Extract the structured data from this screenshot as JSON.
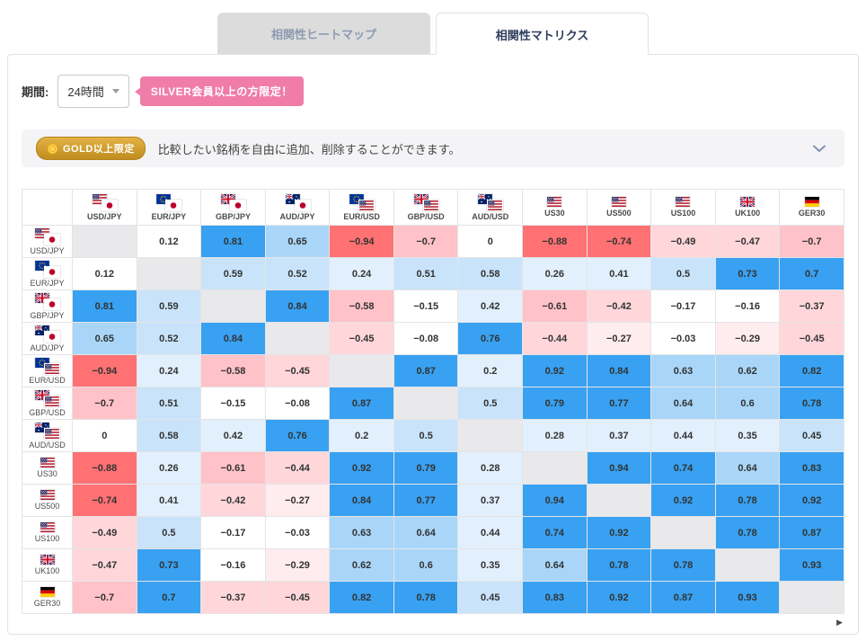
{
  "tabs": {
    "heatmap": "相関性ヒートマップ",
    "matrix": "相関性マトリクス"
  },
  "controls": {
    "period_label": "期間:",
    "period_value": "24時間",
    "silver_badge": "SILVER会員以上の方限定！"
  },
  "notice": {
    "badge": "GOLD以上限定",
    "text": "比較したい銘柄を自由に追加、削除することができます。"
  },
  "matrix": {
    "symbols": [
      {
        "name": "USD/JPY",
        "flags": [
          "us",
          "jp"
        ]
      },
      {
        "name": "EUR/JPY",
        "flags": [
          "eu",
          "jp"
        ]
      },
      {
        "name": "GBP/JPY",
        "flags": [
          "gb",
          "jp"
        ]
      },
      {
        "name": "AUD/JPY",
        "flags": [
          "au",
          "jp"
        ]
      },
      {
        "name": "EUR/USD",
        "flags": [
          "eu",
          "us"
        ]
      },
      {
        "name": "GBP/USD",
        "flags": [
          "gb",
          "us"
        ]
      },
      {
        "name": "AUD/USD",
        "flags": [
          "au",
          "us"
        ]
      },
      {
        "name": "US30",
        "flags": [
          "us"
        ]
      },
      {
        "name": "US500",
        "flags": [
          "us"
        ]
      },
      {
        "name": "US100",
        "flags": [
          "us"
        ]
      },
      {
        "name": "UK100",
        "flags": [
          "gb"
        ]
      },
      {
        "name": "GER30",
        "flags": [
          "de"
        ]
      }
    ],
    "values": [
      [
        null,
        0.12,
        0.81,
        0.65,
        -0.94,
        -0.7,
        0,
        -0.88,
        -0.74,
        -0.49,
        -0.47,
        -0.7
      ],
      [
        0.12,
        null,
        0.59,
        0.52,
        0.24,
        0.51,
        0.58,
        0.26,
        0.41,
        0.5,
        0.73,
        0.7
      ],
      [
        0.81,
        0.59,
        null,
        0.84,
        -0.58,
        -0.15,
        0.42,
        -0.61,
        -0.42,
        -0.17,
        -0.16,
        -0.37
      ],
      [
        0.65,
        0.52,
        0.84,
        null,
        -0.45,
        -0.08,
        0.76,
        -0.44,
        -0.27,
        -0.03,
        -0.29,
        -0.45
      ],
      [
        -0.94,
        0.24,
        -0.58,
        -0.45,
        null,
        0.87,
        0.2,
        0.92,
        0.84,
        0.63,
        0.62,
        0.82
      ],
      [
        -0.7,
        0.51,
        -0.15,
        -0.08,
        0.87,
        null,
        0.5,
        0.79,
        0.77,
        0.64,
        0.6,
        0.78
      ],
      [
        0,
        0.58,
        0.42,
        0.76,
        0.2,
        0.5,
        null,
        0.28,
        0.37,
        0.44,
        0.35,
        0.45
      ],
      [
        -0.88,
        0.26,
        -0.61,
        -0.44,
        0.92,
        0.79,
        0.28,
        null,
        0.94,
        0.74,
        0.64,
        0.83
      ],
      [
        -0.74,
        0.41,
        -0.42,
        -0.27,
        0.84,
        0.77,
        0.37,
        0.94,
        null,
        0.92,
        0.78,
        0.92
      ],
      [
        -0.49,
        0.5,
        -0.17,
        -0.03,
        0.63,
        0.64,
        0.44,
        0.74,
        0.92,
        null,
        0.78,
        0.87
      ],
      [
        -0.47,
        0.73,
        -0.16,
        -0.29,
        0.62,
        0.6,
        0.35,
        0.64,
        0.78,
        0.78,
        null,
        0.93
      ],
      [
        -0.7,
        0.7,
        -0.37,
        -0.45,
        0.82,
        0.78,
        0.45,
        0.83,
        0.92,
        0.87,
        0.93,
        null
      ]
    ]
  },
  "colors": {
    "positive_strong": "#38a1f2",
    "positive_medium": "#a9d6f8",
    "positive_light": "#c9e4fa",
    "positive_faint": "#e2f0fd",
    "negative_strong": "#ff7173",
    "negative_medium": "#ffc2c8",
    "negative_light": "#ffd7db",
    "negative_faint": "#ffecee",
    "neutral": "#ffffff",
    "diagonal": "#e9e9ec",
    "accent_pink": "#f07da8",
    "accent_gold": "#c99a2e",
    "tab_active_text": "#2c3d5c"
  },
  "scrollbar": {
    "right_arrow": "▶"
  }
}
